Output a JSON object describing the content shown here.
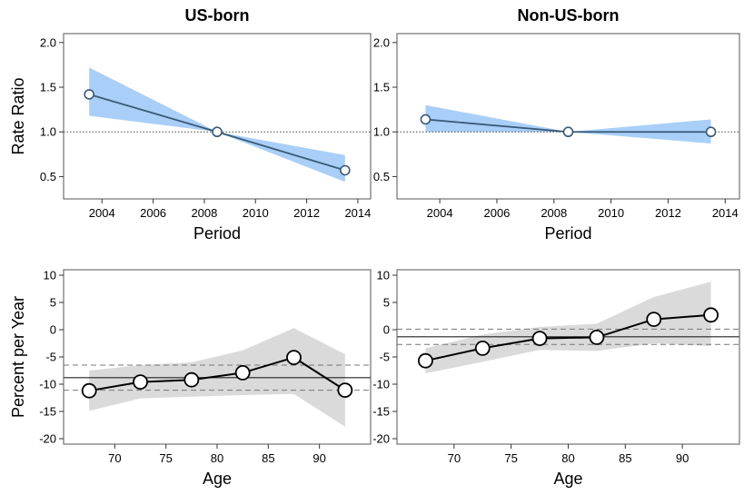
{
  "figure": {
    "panel_titles": [
      "US-born",
      "Non-US-born"
    ]
  },
  "colors": {
    "rr_band": "#a9cff8",
    "rr_line": "#3a5a78",
    "pct_band": "#dadada",
    "pct_line": "#000000",
    "frame": "#555555"
  },
  "chart_data": [
    {
      "type": "line",
      "panel": "top-left",
      "title": "US-born",
      "xlabel": "Period",
      "ylabel": "Rate Ratio",
      "xlim": [
        2002.5,
        2014.5
      ],
      "ylim": [
        0.25,
        2.1
      ],
      "xticks": [
        2004,
        2006,
        2008,
        2010,
        2012,
        2014
      ],
      "yticks": [
        "0.5",
        "1.0",
        "1.5",
        "2.0"
      ],
      "reference_line": 1.0,
      "series": [
        {
          "x": [
            2003.5,
            2008.5,
            2013.5
          ],
          "y": [
            1.42,
            1.0,
            0.57
          ],
          "lower": [
            1.18,
            1.0,
            0.44
          ],
          "upper": [
            1.72,
            1.0,
            0.74
          ]
        }
      ]
    },
    {
      "type": "line",
      "panel": "top-right",
      "title": "Non-US-born",
      "xlabel": "Period",
      "ylabel": "",
      "xlim": [
        2002.5,
        2014.5
      ],
      "ylim": [
        0.25,
        2.1
      ],
      "xticks": [
        2004,
        2006,
        2008,
        2010,
        2012,
        2014
      ],
      "yticks": [
        "0.5",
        "1.0",
        "1.5",
        "2.0"
      ],
      "reference_line": 1.0,
      "series": [
        {
          "x": [
            2003.5,
            2008.5,
            2013.5
          ],
          "y": [
            1.14,
            1.0,
            1.0
          ],
          "lower": [
            1.0,
            1.0,
            0.87
          ],
          "upper": [
            1.3,
            1.0,
            1.14
          ]
        }
      ]
    },
    {
      "type": "line",
      "panel": "bottom-left",
      "title": "",
      "xlabel": "Age",
      "ylabel": "Percent per Year",
      "xlim": [
        65,
        95
      ],
      "ylim": [
        -21,
        11
      ],
      "xticks": [
        70,
        75,
        80,
        85,
        90
      ],
      "yticks": [
        "10",
        "5",
        "0",
        "-5",
        "-10",
        "-15",
        "-20"
      ],
      "overall": -8.8,
      "overall_ci": [
        -11.1,
        -6.5
      ],
      "series": [
        {
          "x": [
            67.5,
            72.5,
            77.5,
            82.5,
            87.5,
            92.5
          ],
          "y": [
            -11.2,
            -9.6,
            -9.2,
            -7.9,
            -5.1,
            -11.1
          ],
          "lower": [
            -14.9,
            -12.6,
            -12.3,
            -12.0,
            -11.8,
            -17.8
          ],
          "upper": [
            -7.5,
            -6.5,
            -6.0,
            -3.8,
            0.3,
            -4.5
          ]
        }
      ]
    },
    {
      "type": "line",
      "panel": "bottom-right",
      "title": "",
      "xlabel": "Age",
      "ylabel": "",
      "xlim": [
        65,
        95
      ],
      "ylim": [
        -21,
        11
      ],
      "xticks": [
        70,
        75,
        80,
        85,
        90
      ],
      "yticks": [
        "10",
        "5",
        "0",
        "-5",
        "-10",
        "-15",
        "-20"
      ],
      "overall": -1.3,
      "overall_ci": [
        -2.7,
        0.1
      ],
      "series": [
        {
          "x": [
            67.5,
            72.5,
            77.5,
            82.5,
            87.5,
            92.5
          ],
          "y": [
            -5.7,
            -3.4,
            -1.6,
            -1.4,
            1.9,
            2.7
          ],
          "lower": [
            -8.0,
            -5.9,
            -3.7,
            -3.9,
            -2.5,
            -3.0
          ],
          "upper": [
            -3.4,
            -0.9,
            0.5,
            1.1,
            6.0,
            8.8
          ]
        }
      ]
    }
  ]
}
